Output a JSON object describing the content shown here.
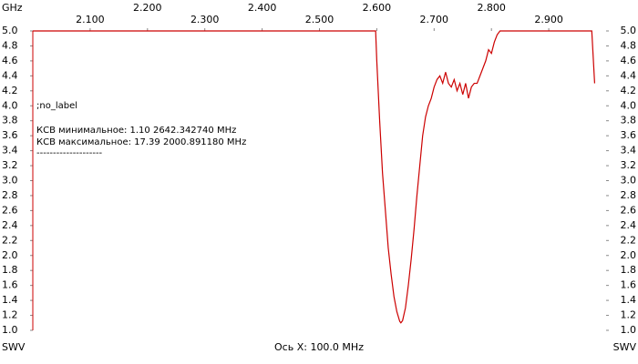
{
  "chart_data": {
    "type": "line",
    "x_unit": "GHz",
    "y_label": "SWV",
    "x_label": "Ось X: 100.0 MHz",
    "annotations": [
      ";no_label",
      "КСВ минимальное: 1.10  2642.342740 MHz",
      "КСВ максимальное: 17.39  2000.891180 MHz",
      "--------------------"
    ],
    "xlim": [
      2.0,
      3.0
    ],
    "xticks": [
      {
        "value": 2.1,
        "label": "2.100"
      },
      {
        "value": 2.2,
        "label": "2.200"
      },
      {
        "value": 2.3,
        "label": "2.300"
      },
      {
        "value": 2.4,
        "label": "2.400"
      },
      {
        "value": 2.5,
        "label": "2.500"
      },
      {
        "value": 2.6,
        "label": "2.600"
      },
      {
        "value": 2.7,
        "label": "2.700"
      },
      {
        "value": 2.8,
        "label": "2.800"
      },
      {
        "value": 2.9,
        "label": "2.900"
      }
    ],
    "ylim": [
      1.0,
      5.0
    ],
    "yticks": [
      {
        "value": 1,
        "label": "1.0"
      },
      1.2,
      1.4,
      1.6,
      1.8,
      {
        "value": 2,
        "label": "2.0"
      },
      2.2,
      2.4,
      2.6,
      2.8,
      {
        "value": 3,
        "label": "3.0"
      },
      3.2,
      3.4,
      3.6,
      3.8,
      {
        "value": 4,
        "label": "4.0"
      },
      4.2,
      4.4,
      4.6,
      4.8,
      {
        "value": 5,
        "label": "5.0"
      }
    ],
    "grid": false,
    "series": [
      {
        "color": "#cc0000",
        "x": [
          2.0,
          2.598,
          2.6,
          2.605,
          2.61,
          2.615,
          2.62,
          2.625,
          2.63,
          2.635,
          2.64,
          2.642,
          2.645,
          2.65,
          2.655,
          2.66,
          2.665,
          2.67,
          2.675,
          2.68,
          2.685,
          2.69,
          2.695,
          2.7,
          2.705,
          2.71,
          2.715,
          2.72,
          2.725,
          2.73,
          2.735,
          2.74,
          2.745,
          2.75,
          2.755,
          2.76,
          2.765,
          2.77,
          2.775,
          2.78,
          2.785,
          2.79,
          2.795,
          2.8,
          2.805,
          2.81,
          2.815,
          2.975,
          2.98
        ],
        "values": [
          5.0,
          5.0,
          4.6,
          3.8,
          3.1,
          2.6,
          2.1,
          1.75,
          1.45,
          1.25,
          1.12,
          1.1,
          1.13,
          1.3,
          1.6,
          1.95,
          2.35,
          2.8,
          3.2,
          3.6,
          3.85,
          4.0,
          4.1,
          4.25,
          4.35,
          4.4,
          4.3,
          4.45,
          4.3,
          4.25,
          4.35,
          4.2,
          4.3,
          4.15,
          4.3,
          4.1,
          4.25,
          4.3,
          4.3,
          4.4,
          4.5,
          4.6,
          4.75,
          4.7,
          4.85,
          4.95,
          5.0,
          5.0,
          4.3
        ]
      }
    ]
  }
}
